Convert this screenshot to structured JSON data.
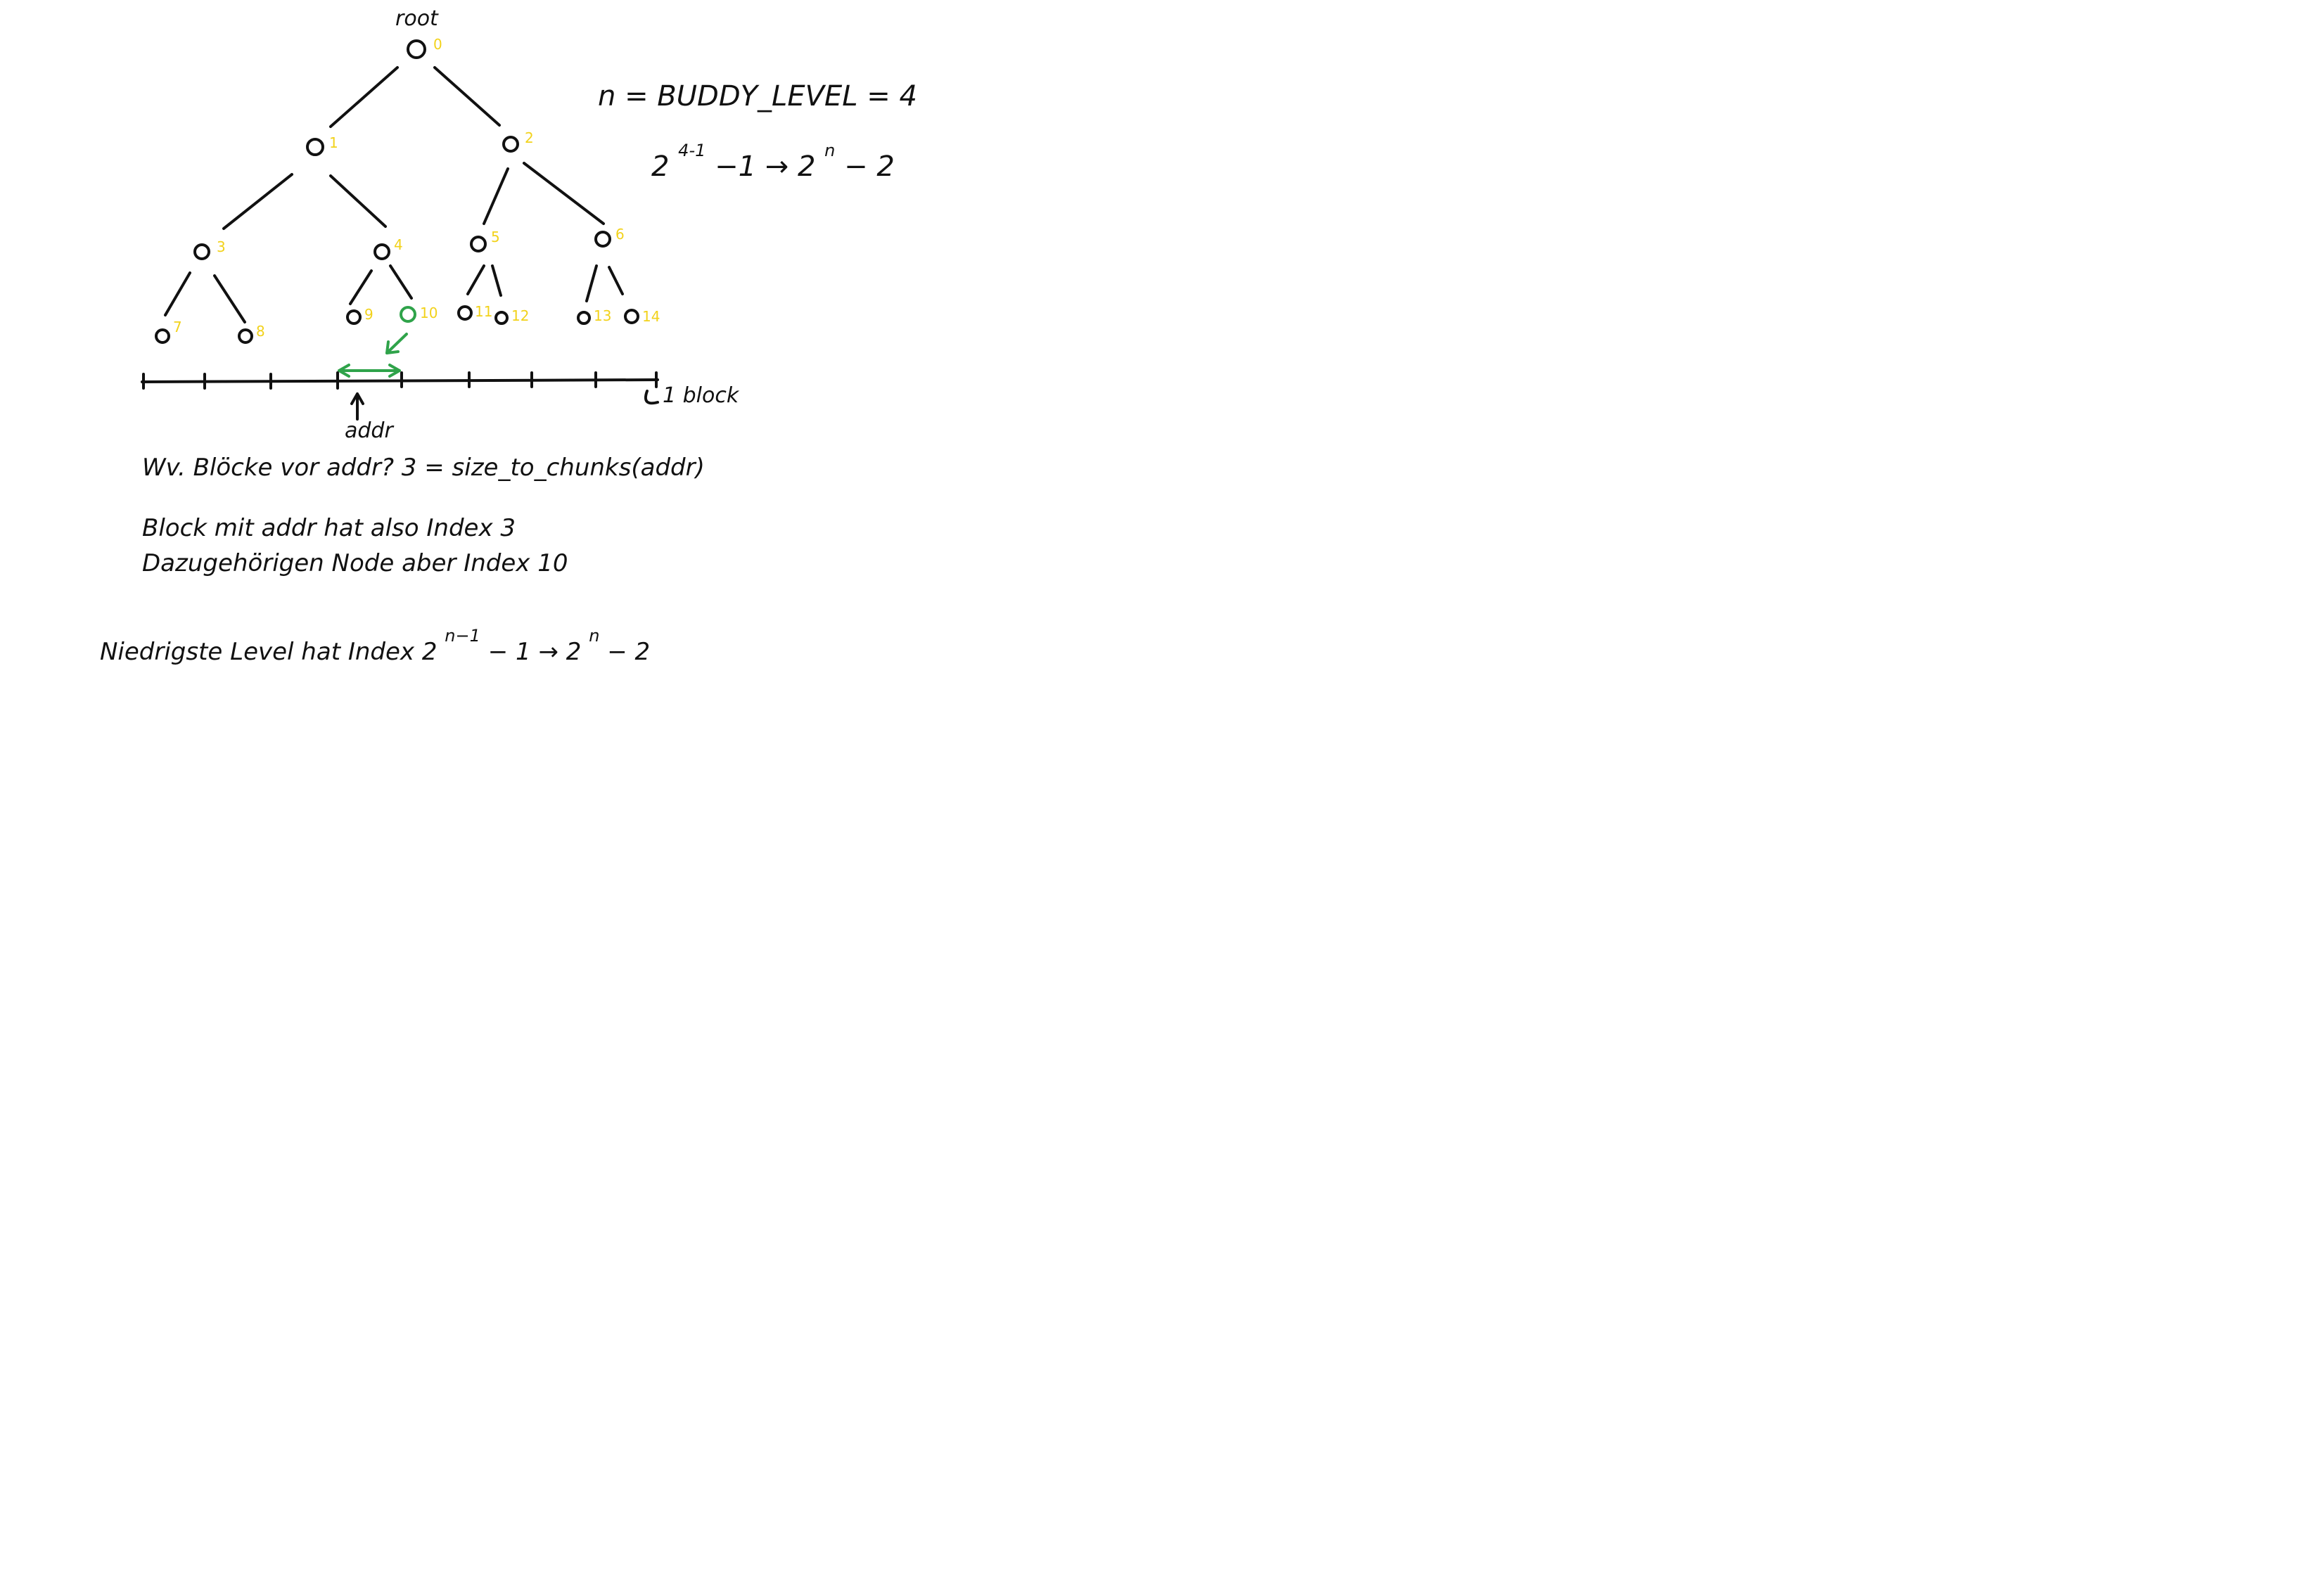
{
  "tree": {
    "root_label": "root",
    "nodes": [
      {
        "index": "0"
      },
      {
        "index": "1"
      },
      {
        "index": "2"
      },
      {
        "index": "3"
      },
      {
        "index": "4"
      },
      {
        "index": "5"
      },
      {
        "index": "6"
      },
      {
        "index": "7"
      },
      {
        "index": "8"
      },
      {
        "index": "9"
      },
      {
        "index": "10",
        "highlight": true
      },
      {
        "index": "11"
      },
      {
        "index": "12"
      },
      {
        "index": "13"
      },
      {
        "index": "14"
      }
    ],
    "highlight_color": "#2fa34a",
    "index_color": "#f2d21b"
  },
  "axis": {
    "block_label": "1 block",
    "addr_label": "addr"
  },
  "formulas": {
    "n_line": "n = BUDDY_LEVEL = 4",
    "range_base": "2",
    "range_exp1": "4-1",
    "range_mid": "−1  →  2",
    "range_exp2": "n",
    "range_end": " − 2"
  },
  "notes": {
    "line1": "Wv. Blöcke vor addr?   3   =   size_to_chunks(addr)",
    "line2": "Block mit addr hat also Index 3",
    "line3": "Dazugehörigen Node aber Index 10",
    "line4_pre": "Niedrigste Level hat Index  2",
    "line4_exp1": "n−1",
    "line4_mid": "  − 1   →  2",
    "line4_exp2": "n",
    "line4_end": "  − 2"
  }
}
